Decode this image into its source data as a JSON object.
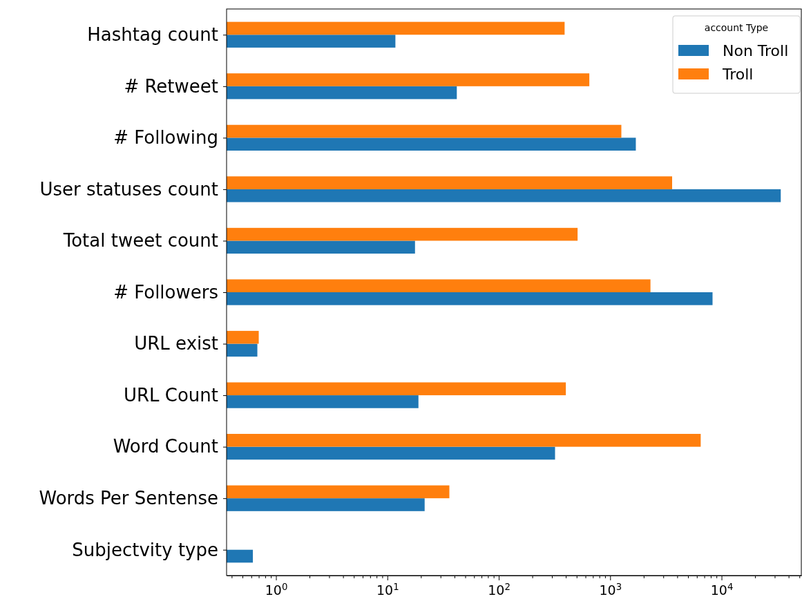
{
  "chart_data": {
    "type": "bar",
    "orientation": "horizontal",
    "log": "x",
    "legend": "top right",
    "legend_title": "account Type",
    "categories": [
      "Hashtag count",
      "# Retweet",
      "# Following",
      "User statuses count",
      "Total tweet count",
      "# Followers",
      "URL exist",
      "URL Count",
      "Word Count",
      "Words Per Sentense",
      "Subjectvity type"
    ],
    "series": [
      {
        "name": "Non Troll",
        "color": "#1f77b4",
        "values": [
          11.8,
          42,
          1700,
          34000,
          17.7,
          8300,
          0.68,
          19,
          320,
          21.6,
          0.62
        ]
      },
      {
        "name": "Troll",
        "color": "#ff7f0e",
        "values": [
          390,
          650,
          1260,
          3600,
          510,
          2300,
          0.7,
          400,
          6500,
          36,
          null
        ]
      }
    ],
    "xlim": [
      0.36,
      52000
    ],
    "xticks": [
      {
        "value": 0.4,
        "label": null
      },
      {
        "value": 0.5,
        "label": null
      },
      {
        "value": 0.6,
        "label": null
      },
      {
        "value": 0.7,
        "label": null
      },
      {
        "value": 0.8,
        "label": null
      },
      {
        "value": 0.9,
        "label": null
      },
      {
        "value": 1,
        "label": "10$^{0}$"
      },
      {
        "value": 2,
        "label": null
      },
      {
        "value": 3,
        "label": null
      },
      {
        "value": 4,
        "label": null
      },
      {
        "value": 5,
        "label": null
      },
      {
        "value": 6,
        "label": null
      },
      {
        "value": 7,
        "label": null
      },
      {
        "value": 8,
        "label": null
      },
      {
        "value": 9,
        "label": null
      },
      {
        "value": 10,
        "label": "10$^{1}$"
      },
      {
        "value": 20,
        "label": null
      },
      {
        "value": 30,
        "label": null
      },
      {
        "value": 40,
        "label": null
      },
      {
        "value": 50,
        "label": null
      },
      {
        "value": 60,
        "label": null
      },
      {
        "value": 70,
        "label": null
      },
      {
        "value": 80,
        "label": null
      },
      {
        "value": 90,
        "label": null
      },
      {
        "value": 100,
        "label": "10$^{2}$"
      },
      {
        "value": 200,
        "label": null
      },
      {
        "value": 300,
        "label": null
      },
      {
        "value": 400,
        "label": null
      },
      {
        "value": 500,
        "label": null
      },
      {
        "value": 600,
        "label": null
      },
      {
        "value": 700,
        "label": null
      },
      {
        "value": 800,
        "label": null
      },
      {
        "value": 900,
        "label": null
      },
      {
        "value": 1000,
        "label": "10$^{3}$"
      },
      {
        "value": 2000,
        "label": null
      },
      {
        "value": 3000,
        "label": null
      },
      {
        "value": 4000,
        "label": null
      },
      {
        "value": 5000,
        "label": null
      },
      {
        "value": 6000,
        "label": null
      },
      {
        "value": 7000,
        "label": null
      },
      {
        "value": 8000,
        "label": null
      },
      {
        "value": 9000,
        "label": null
      },
      {
        "value": 10000,
        "label": "10$^{4}$"
      },
      {
        "value": 20000,
        "label": null
      },
      {
        "value": 30000,
        "label": null
      },
      {
        "value": 40000,
        "label": null
      },
      {
        "value": 50000,
        "label": null
      }
    ]
  }
}
